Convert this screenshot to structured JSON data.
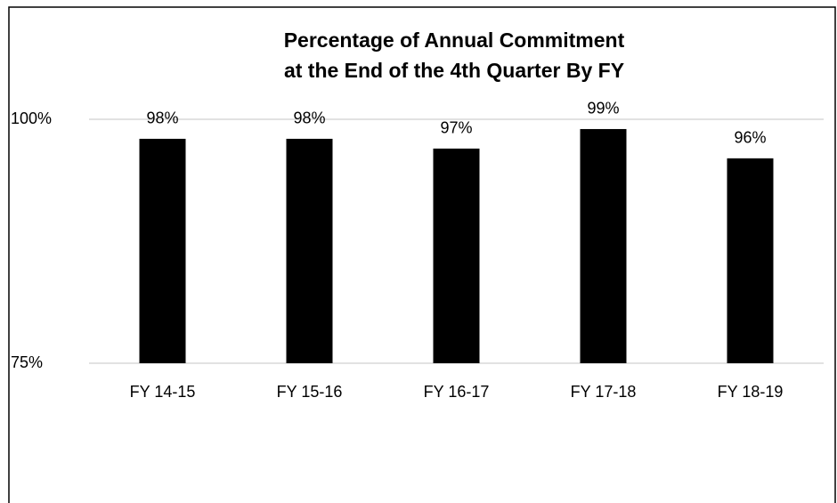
{
  "chart_data": {
    "type": "bar",
    "title": [
      "Percentage of Annual Commitment",
      "at the End of the 4th Quarter By FY"
    ],
    "categories": [
      "FY 14-15",
      "FY 15-16",
      "FY 16-17",
      "FY 17-18",
      "FY 18-19"
    ],
    "values": [
      98,
      98,
      97,
      99,
      96
    ],
    "value_labels": [
      "98%",
      "98%",
      "97%",
      "99%",
      "96%"
    ],
    "color": "#000000",
    "ylim": [
      75,
      100
    ],
    "yticks": [
      {
        "value": 75,
        "label": "75%"
      },
      {
        "value": 100,
        "label": "100%"
      }
    ],
    "grid": true
  }
}
